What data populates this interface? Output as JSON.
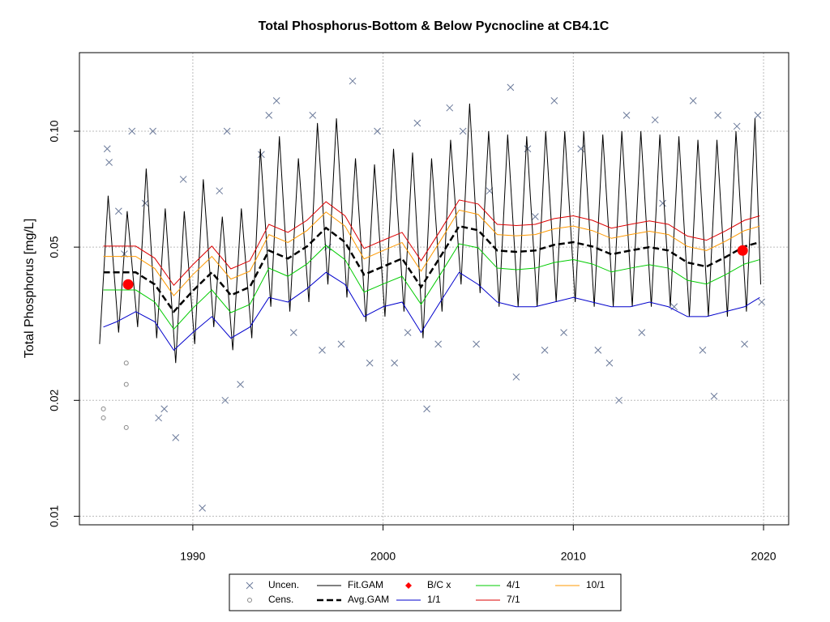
{
  "chart_data": {
    "type": "line",
    "title": "Total Phosphorus-Bottom & Below Pycnocline at CB4.1C",
    "y_label": "Total Phosphorus [mg/L]",
    "xlim": [
      1984.04,
      2021.32
    ],
    "ylim": [
      0.0095,
      0.16
    ],
    "xticks": [
      1990,
      2000,
      2010,
      2020
    ],
    "yticks": [
      0.01,
      0.02,
      0.05,
      {
        "value": 0.1,
        "label": "0.10"
      }
    ],
    "log_y": true,
    "grid": true,
    "legend": "bottom",
    "series": [
      {
        "name": "Uncen.",
        "color": "#6b7a9a",
        "style": "x",
        "x": [
          1985.5,
          1985.6,
          1986.1,
          1986.4,
          1986.8,
          1987.5,
          1987.9,
          1988.2,
          1988.5,
          1989.1,
          1989.5,
          1990.5,
          1991.4,
          1991.7,
          1991.8,
          1992.5,
          1993.6,
          1994.0,
          1994.4,
          1995.3,
          1996.3,
          1996.8,
          1997.1,
          1997.8,
          1998.4,
          1999.3,
          1999.7,
          2000.6,
          2001.3,
          2001.8,
          2002.3,
          2002.9,
          2003.5,
          2004.2,
          2004.9,
          2005.6,
          2006.7,
          2007.0,
          2007.6,
          2008.5,
          2009.0,
          2009.5,
          2010.4,
          2011.3,
          2011.9,
          2012.4,
          2012.8,
          2013.6,
          2014.3,
          2015.3,
          2016.3,
          2016.8,
          2017.4,
          2017.6,
          2018.6,
          2019.0,
          2019.7,
          2019.9,
          2014.7,
          2008.0
        ],
        "values": [
          0.09,
          0.083,
          0.062,
          0.048,
          0.1,
          0.065,
          0.1,
          0.018,
          0.019,
          0.016,
          0.075,
          0.0105,
          0.07,
          0.02,
          0.1,
          0.022,
          0.087,
          0.11,
          0.12,
          0.03,
          0.11,
          0.027,
          0.05,
          0.028,
          0.135,
          0.025,
          0.1,
          0.025,
          0.03,
          0.105,
          0.019,
          0.028,
          0.115,
          0.1,
          0.028,
          0.07,
          0.13,
          0.023,
          0.09,
          0.027,
          0.12,
          0.03,
          0.09,
          0.027,
          0.025,
          0.02,
          0.11,
          0.03,
          0.107,
          0.035,
          0.12,
          0.027,
          0.0205,
          0.11,
          0.103,
          0.028,
          0.11,
          0.036,
          0.065,
          0.06
        ]
      },
      {
        "name": "Cens.",
        "color": "#888888",
        "style": "circle",
        "x": [
          1985.3,
          1985.3,
          1986.5,
          1986.5,
          1986.5
        ],
        "values": [
          0.019,
          0.018,
          0.022,
          0.017,
          0.025
        ]
      },
      {
        "name": "Fit.GAM",
        "color": "#000000",
        "style": "line",
        "x": [
          1985.1,
          1985.55,
          1986.1,
          1986.55,
          1987.1,
          1987.55,
          1988.1,
          1988.55,
          1989.1,
          1989.55,
          1990.1,
          1990.55,
          1991.1,
          1991.55,
          1992.1,
          1992.55,
          1993.1,
          1993.55,
          1994.1,
          1994.55,
          1995.1,
          1995.55,
          1996.1,
          1996.55,
          1997.1,
          1997.55,
          1998.1,
          1998.55,
          1999.1,
          1999.55,
          2000.1,
          2000.55,
          2001.1,
          2001.55,
          2002.1,
          2002.55,
          2003.1,
          2003.55,
          2004.1,
          2004.55,
          2005.1,
          2005.55,
          2006.1,
          2006.55,
          2007.1,
          2007.55,
          2008.1,
          2008.55,
          2009.1,
          2009.55,
          2010.1,
          2010.55,
          2011.1,
          2011.55,
          2012.1,
          2012.55,
          2013.1,
          2013.55,
          2014.1,
          2014.55,
          2015.1,
          2015.55,
          2016.1,
          2016.55,
          2017.1,
          2017.55,
          2018.1,
          2018.55,
          2019.1,
          2019.55,
          2019.85
        ],
        "values": [
          0.028,
          0.068,
          0.03,
          0.062,
          0.031,
          0.08,
          0.029,
          0.063,
          0.025,
          0.062,
          0.028,
          0.075,
          0.031,
          0.06,
          0.027,
          0.063,
          0.029,
          0.09,
          0.035,
          0.097,
          0.034,
          0.085,
          0.036,
          0.105,
          0.04,
          0.108,
          0.037,
          0.085,
          0.032,
          0.082,
          0.033,
          0.09,
          0.034,
          0.088,
          0.029,
          0.085,
          0.034,
          0.095,
          0.04,
          0.118,
          0.038,
          0.1,
          0.035,
          0.098,
          0.035,
          0.097,
          0.035,
          0.1,
          0.036,
          0.1,
          0.036,
          0.1,
          0.035,
          0.098,
          0.035,
          0.1,
          0.035,
          0.1,
          0.035,
          0.098,
          0.035,
          0.097,
          0.033,
          0.095,
          0.033,
          0.095,
          0.033,
          0.1,
          0.034,
          0.108,
          0.04
        ]
      },
      {
        "name": "Avg.GAM",
        "color": "#000000",
        "style": "dashed",
        "x": [
          1985.3,
          1986,
          1987,
          1988,
          1989,
          1990,
          1991,
          1992,
          1993,
          1994,
          1995,
          1996,
          1997,
          1998,
          1999,
          2000,
          2001,
          2002,
          2003,
          2004,
          2005,
          2006,
          2007,
          2008,
          2009,
          2010,
          2011,
          2012,
          2013,
          2014,
          2015,
          2016,
          2017,
          2018,
          2019,
          2019.8
        ],
        "values": [
          0.043,
          0.043,
          0.043,
          0.04,
          0.034,
          0.0385,
          0.043,
          0.0375,
          0.0394,
          0.049,
          0.0467,
          0.0502,
          0.0561,
          0.0515,
          0.0424,
          0.0445,
          0.0467,
          0.0394,
          0.0471,
          0.0567,
          0.0553,
          0.049,
          0.0486,
          0.049,
          0.0507,
          0.0515,
          0.0502,
          0.0479,
          0.049,
          0.05,
          0.049,
          0.0456,
          0.0445,
          0.0471,
          0.0502,
          0.0515
        ]
      },
      {
        "name": "B/C x",
        "color": "#ff0000",
        "style": "dot",
        "x": [
          1986.6,
          2018.9
        ],
        "values": [
          0.04,
          0.049
        ]
      },
      {
        "name": "1/1",
        "color": "#0000cc",
        "style": "line",
        "x": [
          1985.3,
          1986,
          1987,
          1988,
          1989,
          1990,
          1991,
          1992,
          1993,
          1994,
          1995,
          1996,
          1997,
          1998,
          1999,
          2000,
          2001,
          2002,
          2003,
          2004,
          2005,
          2006,
          2007,
          2008,
          2009,
          2010,
          2011,
          2012,
          2013,
          2014,
          2015,
          2016,
          2017,
          2018,
          2019,
          2019.8
        ],
        "values": [
          0.031,
          0.032,
          0.034,
          0.032,
          0.027,
          0.03,
          0.033,
          0.029,
          0.031,
          0.037,
          0.036,
          0.039,
          0.043,
          0.04,
          0.033,
          0.035,
          0.036,
          0.03,
          0.036,
          0.043,
          0.04,
          0.036,
          0.035,
          0.035,
          0.036,
          0.037,
          0.036,
          0.035,
          0.035,
          0.036,
          0.035,
          0.033,
          0.033,
          0.034,
          0.035,
          0.037
        ]
      },
      {
        "name": "4/1",
        "color": "#00cc00",
        "style": "line",
        "x": [
          1985.3,
          1986,
          1987,
          1988,
          1989,
          1990,
          1991,
          1992,
          1993,
          1994,
          1995,
          1996,
          1997,
          1998,
          1999,
          2000,
          2001,
          2002,
          2003,
          2004,
          2005,
          2006,
          2007,
          2008,
          2009,
          2010,
          2011,
          2012,
          2013,
          2014,
          2015,
          2016,
          2017,
          2018,
          2019,
          2019.8
        ],
        "values": [
          0.0387,
          0.0387,
          0.0387,
          0.036,
          0.0306,
          0.0347,
          0.0387,
          0.0338,
          0.0355,
          0.0441,
          0.042,
          0.0452,
          0.0505,
          0.0464,
          0.0382,
          0.0401,
          0.042,
          0.0355,
          0.0424,
          0.051,
          0.0498,
          0.0441,
          0.0437,
          0.0441,
          0.0456,
          0.0464,
          0.0452,
          0.0431,
          0.0441,
          0.045,
          0.0441,
          0.041,
          0.0401,
          0.0424,
          0.0452,
          0.0464
        ]
      },
      {
        "name": "7/1",
        "color": "#dd0000",
        "style": "line",
        "x": [
          1985.3,
          1986,
          1987,
          1988,
          1989,
          1990,
          1991,
          1992,
          1993,
          1994,
          1995,
          1996,
          1997,
          1998,
          1999,
          2000,
          2001,
          2002,
          2003,
          2004,
          2005,
          2006,
          2007,
          2008,
          2009,
          2010,
          2011,
          2012,
          2013,
          2014,
          2015,
          2016,
          2017,
          2018,
          2019,
          2019.8
        ],
        "values": [
          0.0503,
          0.0503,
          0.0503,
          0.0468,
          0.0398,
          0.045,
          0.0503,
          0.0439,
          0.0461,
          0.0573,
          0.0546,
          0.0587,
          0.0656,
          0.0603,
          0.0496,
          0.0521,
          0.0546,
          0.0461,
          0.0551,
          0.0663,
          0.0647,
          0.0573,
          0.0569,
          0.0573,
          0.0593,
          0.0603,
          0.0587,
          0.056,
          0.0573,
          0.0585,
          0.0573,
          0.0534,
          0.0521,
          0.0551,
          0.0587,
          0.0603
        ]
      },
      {
        "name": "10/1",
        "color": "#ff9900",
        "style": "line",
        "x": [
          1985.3,
          1986,
          1987,
          1988,
          1989,
          1990,
          1991,
          1992,
          1993,
          1994,
          1995,
          1996,
          1997,
          1998,
          1999,
          2000,
          2001,
          2002,
          2003,
          2004,
          2005,
          2006,
          2007,
          2008,
          2009,
          2010,
          2011,
          2012,
          2013,
          2014,
          2015,
          2016,
          2017,
          2018,
          2019,
          2019.8
        ],
        "values": [
          0.0473,
          0.0473,
          0.0473,
          0.044,
          0.0374,
          0.0424,
          0.0473,
          0.0413,
          0.0433,
          0.0539,
          0.0514,
          0.0552,
          0.0617,
          0.0567,
          0.0466,
          0.049,
          0.0514,
          0.0433,
          0.0518,
          0.0624,
          0.0608,
          0.0539,
          0.0535,
          0.0539,
          0.0558,
          0.0567,
          0.0552,
          0.0527,
          0.0539,
          0.055,
          0.0539,
          0.0502,
          0.049,
          0.0518,
          0.0552,
          0.0567
        ]
      }
    ]
  }
}
